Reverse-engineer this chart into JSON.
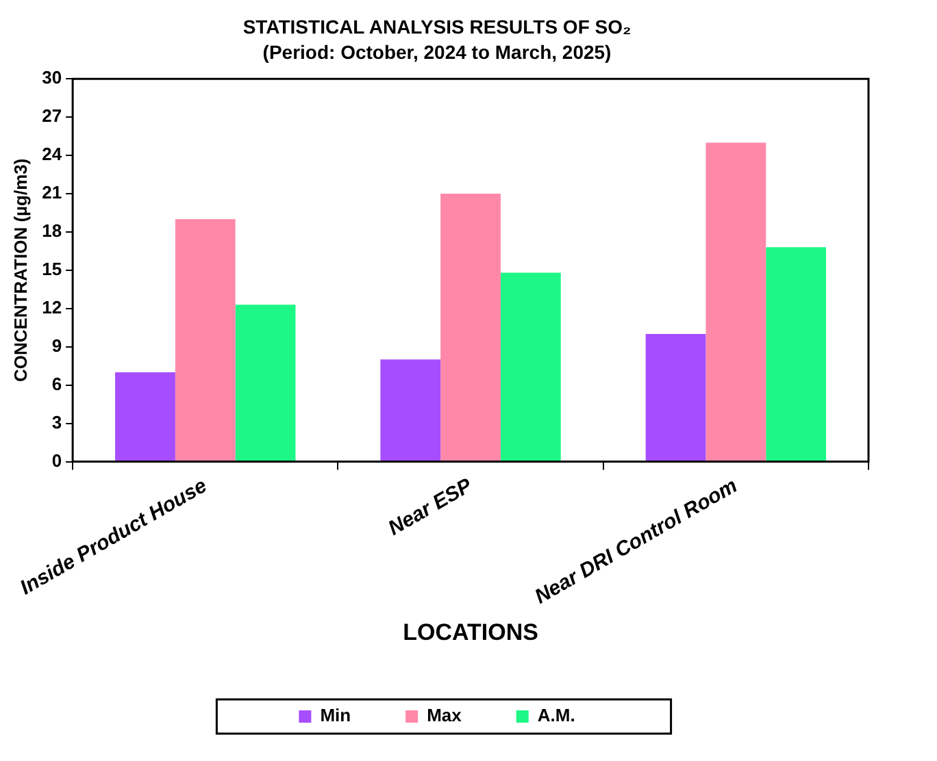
{
  "chart_data": {
    "type": "bar",
    "title": "STATISTICAL ANALYSIS RESULTS OF SO₂",
    "subtitle": "(Period: October, 2024 to March, 2025)",
    "xlabel": "LOCATIONS",
    "ylabel": "CONCENTRATION (µg/m3)",
    "categories": [
      "Inside Product House",
      "Near ESP",
      "Near DRI Control Room"
    ],
    "series": [
      {
        "name": "Min",
        "color": "#a64dff",
        "values": [
          7,
          8,
          10
        ]
      },
      {
        "name": "Max",
        "color": "#ff88a8",
        "values": [
          19,
          21,
          25
        ]
      },
      {
        "name": "A.M.",
        "color": "#1cf785",
        "values": [
          12.3,
          14.8,
          16.8
        ]
      }
    ],
    "ylim": [
      0,
      30
    ],
    "yticks": [
      0,
      3,
      6,
      9,
      12,
      15,
      18,
      21,
      24,
      27,
      30
    ],
    "grid": false,
    "legend": "bottom"
  }
}
